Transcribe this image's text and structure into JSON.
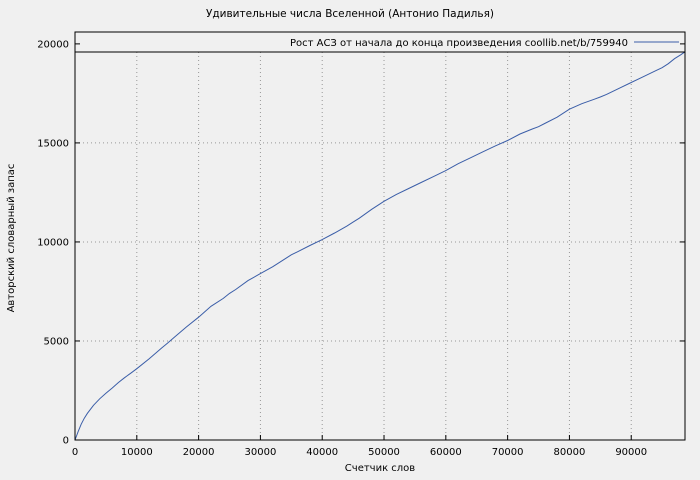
{
  "chart_data": {
    "type": "line",
    "title": "Удивительные числа Вселенной (Антонио Падилья)",
    "legend": "Рост АСЗ от начала до конца произведения coollib.net/b/759940",
    "xlabel": "Счетчик слов",
    "ylabel": "Авторский словарный запас",
    "xlim": [
      0,
      98700
    ],
    "ylim": [
      0,
      20600
    ],
    "xticks": [
      0,
      10000,
      20000,
      30000,
      40000,
      50000,
      60000,
      70000,
      80000,
      90000
    ],
    "yticks": [
      0,
      5000,
      10000,
      15000,
      20000
    ],
    "grid": true,
    "legend_position": "top",
    "line_color": "#3b5ea8",
    "background": "#f0f0f0",
    "points": [
      [
        0,
        0
      ],
      [
        500,
        420
      ],
      [
        1000,
        800
      ],
      [
        1500,
        1100
      ],
      [
        2000,
        1350
      ],
      [
        3000,
        1750
      ],
      [
        4000,
        2080
      ],
      [
        5000,
        2360
      ],
      [
        6000,
        2620
      ],
      [
        7000,
        2900
      ],
      [
        8000,
        3140
      ],
      [
        9000,
        3370
      ],
      [
        10000,
        3600
      ],
      [
        12000,
        4100
      ],
      [
        14000,
        4640
      ],
      [
        15000,
        4900
      ],
      [
        16000,
        5170
      ],
      [
        18000,
        5700
      ],
      [
        20000,
        6200
      ],
      [
        22000,
        6750
      ],
      [
        24000,
        7150
      ],
      [
        25000,
        7400
      ],
      [
        26000,
        7600
      ],
      [
        28000,
        8050
      ],
      [
        30000,
        8400
      ],
      [
        32000,
        8750
      ],
      [
        34000,
        9150
      ],
      [
        35000,
        9350
      ],
      [
        36000,
        9500
      ],
      [
        38000,
        9820
      ],
      [
        40000,
        10120
      ],
      [
        42000,
        10450
      ],
      [
        44000,
        10800
      ],
      [
        45000,
        11000
      ],
      [
        46000,
        11200
      ],
      [
        48000,
        11650
      ],
      [
        50000,
        12050
      ],
      [
        52000,
        12400
      ],
      [
        54000,
        12700
      ],
      [
        55000,
        12850
      ],
      [
        56000,
        13000
      ],
      [
        58000,
        13300
      ],
      [
        60000,
        13600
      ],
      [
        62000,
        13950
      ],
      [
        64000,
        14250
      ],
      [
        65000,
        14400
      ],
      [
        66000,
        14550
      ],
      [
        68000,
        14850
      ],
      [
        70000,
        15120
      ],
      [
        72000,
        15450
      ],
      [
        74000,
        15700
      ],
      [
        75000,
        15820
      ],
      [
        76000,
        15980
      ],
      [
        78000,
        16300
      ],
      [
        80000,
        16700
      ],
      [
        82000,
        16980
      ],
      [
        84000,
        17200
      ],
      [
        85000,
        17320
      ],
      [
        86000,
        17450
      ],
      [
        88000,
        17750
      ],
      [
        90000,
        18050
      ],
      [
        92000,
        18350
      ],
      [
        94000,
        18650
      ],
      [
        95000,
        18800
      ],
      [
        96000,
        19000
      ],
      [
        97000,
        19250
      ],
      [
        98000,
        19450
      ],
      [
        98700,
        19600
      ]
    ]
  }
}
